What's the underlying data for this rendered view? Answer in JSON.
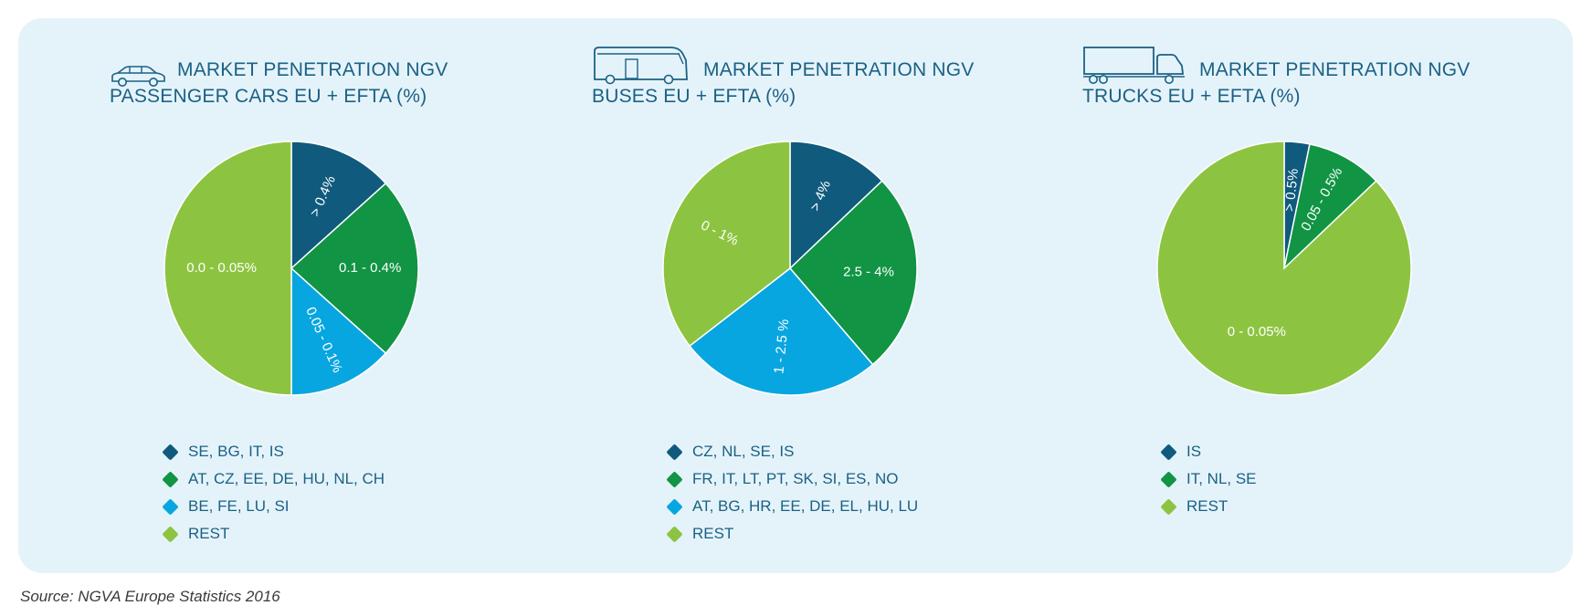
{
  "colors": {
    "dark_blue": "#105a7e",
    "green": "#119444",
    "light_blue": "#08a6e0",
    "lime": "#8cc441",
    "title": "#1b6184",
    "panel_bg": "#e4f3fa"
  },
  "source": "Source: NGVA Europe Statistics 2016",
  "chart_data": [
    {
      "type": "pie",
      "icon": "car-icon",
      "title_line1": "MARKET PENETRATION NGV",
      "title_line2": "PASSENGER CARS EU + EFTA (%)",
      "slices": [
        {
          "label": "> 0.4%",
          "legend": "SE, BG, IT, IS",
          "value": 4,
          "color": "#105a7e"
        },
        {
          "label": "0.1 - 0.4%",
          "legend": "AT, CZ, EE, DE, HU, NL, CH",
          "value": 7,
          "color": "#119444"
        },
        {
          "label": "0.05 - 0.1%",
          "legend": "BE, FE, LU, SI",
          "value": 4,
          "color": "#08a6e0"
        },
        {
          "label": "0.0 - 0.05%",
          "legend": "REST",
          "value": 15,
          "color": "#8cc441"
        }
      ]
    },
    {
      "type": "pie",
      "icon": "bus-icon",
      "title_line1": "MARKET PENETRATION NGV",
      "title_line2": "BUSES EU + EFTA (%)",
      "slices": [
        {
          "label": "> 4%",
          "legend": "CZ, NL, SE, IS",
          "value": 4,
          "color": "#105a7e"
        },
        {
          "label": "2.5 - 4%",
          "legend": "FR, IT, LT, PT, SK, SI, ES, NO",
          "value": 8,
          "color": "#119444"
        },
        {
          "label": "1 - 2.5 %",
          "legend": "AT, BG, HR, EE, DE, EL, HU, LU",
          "value": 8,
          "color": "#08a6e0"
        },
        {
          "label": "0 - 1%",
          "legend": "REST",
          "value": 11,
          "color": "#8cc441"
        }
      ]
    },
    {
      "type": "pie",
      "icon": "truck-icon",
      "title_line1": "MARKET PENETRATION NGV",
      "title_line2": "TRUCKS EU + EFTA (%)",
      "slices": [
        {
          "label": "> 0.5%",
          "legend": "IS",
          "value": 1,
          "color": "#105a7e"
        },
        {
          "label": "0.05 - 0.5%",
          "legend": "IT, NL, SE",
          "value": 3,
          "color": "#119444"
        },
        {
          "label": "0 - 0.05%",
          "legend": "REST",
          "value": 27,
          "color": "#8cc441"
        }
      ]
    }
  ]
}
